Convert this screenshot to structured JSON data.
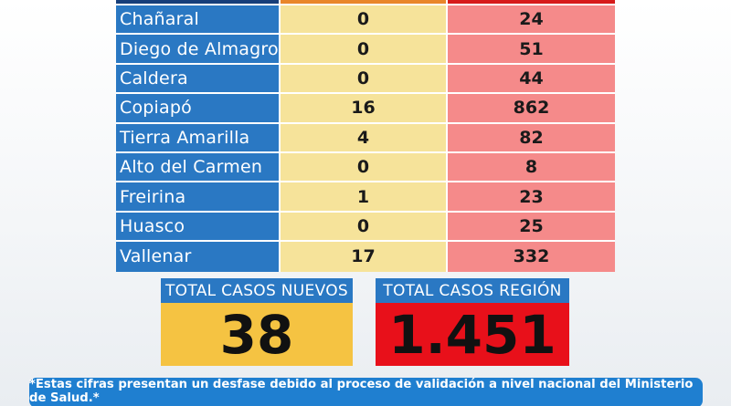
{
  "table": {
    "rows": [
      {
        "comuna": "Chañaral",
        "nuevos": "0",
        "total": "24"
      },
      {
        "comuna": "Diego de Almagro",
        "nuevos": "0",
        "total": "51"
      },
      {
        "comuna": "Caldera",
        "nuevos": "0",
        "total": "44"
      },
      {
        "comuna": "Copiapó",
        "nuevos": "16",
        "total": "862"
      },
      {
        "comuna": "Tierra Amarilla",
        "nuevos": "4",
        "total": "82"
      },
      {
        "comuna": "Alto del Carmen",
        "nuevos": "0",
        "total": "8"
      },
      {
        "comuna": "Freirina",
        "nuevos": "1",
        "total": "23"
      },
      {
        "comuna": "Huasco",
        "nuevos": "0",
        "total": "25"
      },
      {
        "comuna": "Vallenar",
        "nuevos": "17",
        "total": "332"
      }
    ]
  },
  "totals": {
    "nuevos_label": "TOTAL CASOS NUEVOS",
    "nuevos_value": "38",
    "region_label": "TOTAL CASOS REGIÓN",
    "region_value": "1.451"
  },
  "footnote": "*Estas cifras presentan un desfase debido al proceso de validación a nivel nacional del Ministerio de Salud.*",
  "colors": {
    "blue": "#2a78c3",
    "light_yellow": "#f6e39a",
    "light_red": "#f58a8a",
    "yellow": "#f5c342",
    "red": "#e8101a"
  }
}
